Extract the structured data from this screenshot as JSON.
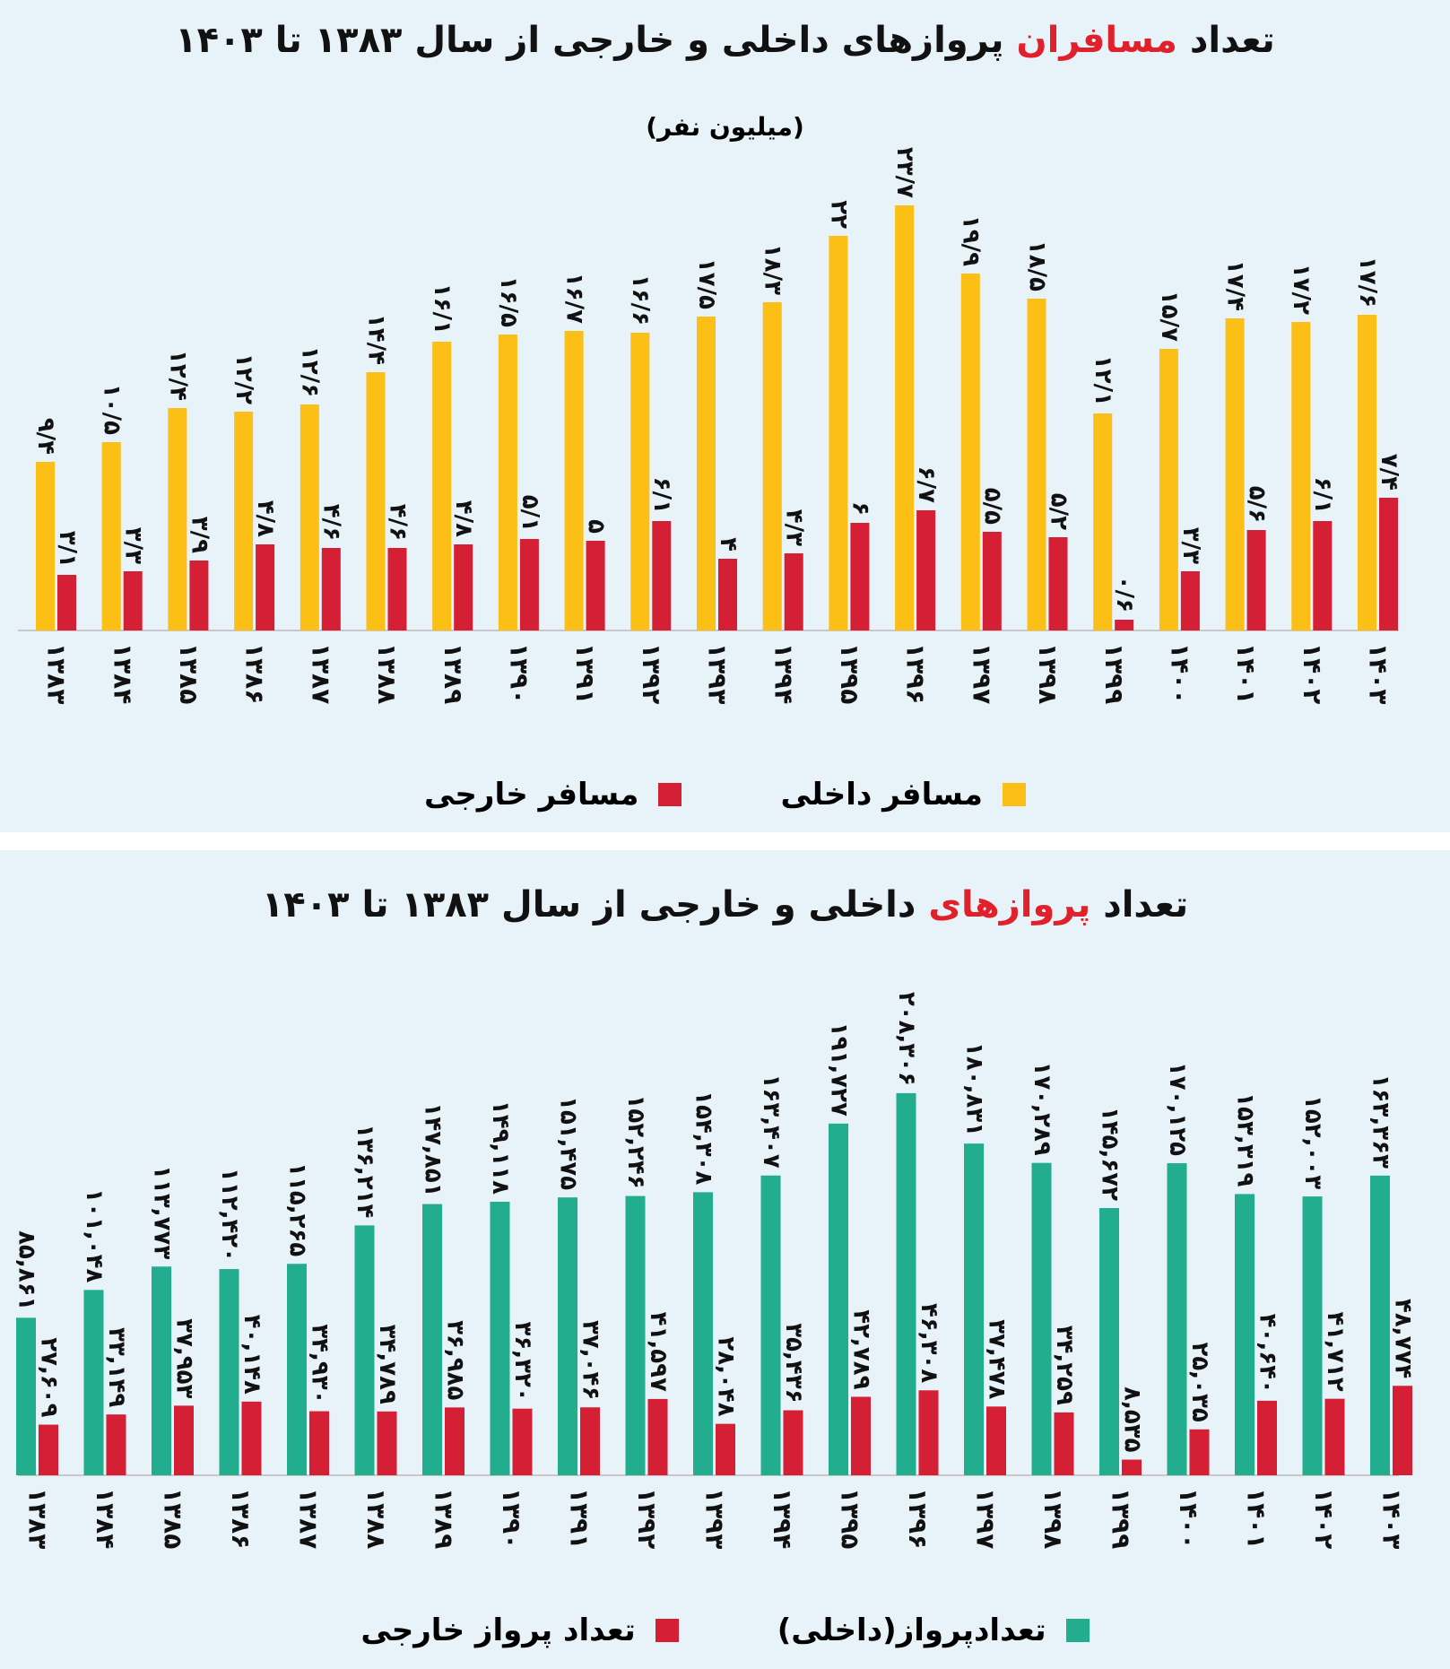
{
  "colors": {
    "domestic_passenger": "#fbbf16",
    "foreign": "#d51f35",
    "domestic_flights": "#22ad8f",
    "highlight": "#e0202a"
  },
  "chart_data": [
    {
      "type": "bar",
      "title_pre": "تعداد",
      "title_hl": "مسافران",
      "title_post": "پروازهای داخلی و خارجی از سال ۱۳۸۳ تا ۱۴۰۳",
      "subtitle": "(میلیون نفر)",
      "categories": [
        "۱۳۸۳",
        "۱۳۸۴",
        "۱۳۸۵",
        "۱۳۸۶",
        "۱۳۸۷",
        "۱۳۸۸",
        "۱۳۸۹",
        "۱۳۹۰",
        "۱۳۹۱",
        "۱۳۹۲",
        "۱۳۹۳",
        "۱۳۹۴",
        "۱۳۹۵",
        "۱۳۹۶",
        "۱۳۹۷",
        "۱۳۹۸",
        "۱۳۹۹",
        "۱۴۰۰",
        "۱۴۰۱",
        "۱۴۰۲",
        "۱۴۰۳"
      ],
      "series": [
        {
          "name": "مسافر داخلی",
          "values": [
            9.4,
            10.5,
            12.4,
            12.2,
            12.6,
            14.4,
            16.1,
            16.5,
            16.7,
            16.6,
            17.5,
            18.3,
            22,
            23.7,
            19.9,
            18.5,
            12.1,
            15.7,
            17.4,
            17.2,
            17.6
          ],
          "labels": [
            "۹/۴",
            "۱۰/۵",
            "۱۲/۴",
            "۱۲/۲",
            "۱۲/۶",
            "۱۴/۴",
            "۱۶/۱",
            "۱۶/۵",
            "۱۶/۷",
            "۱۶/۶",
            "۱۷/۵",
            "۱۸/۳",
            "۲۲",
            "۲۳/۷",
            "۱۹/۹",
            "۱۸/۵",
            "۱۲/۱",
            "۱۵/۷",
            "۱۷/۴",
            "۱۷/۲",
            "۱۷/۶"
          ]
        },
        {
          "name": "مسافر خارجی",
          "values": [
            3.1,
            3.3,
            3.9,
            4.8,
            4.6,
            4.6,
            4.8,
            5.1,
            5,
            6.1,
            4,
            4.3,
            6,
            6.7,
            5.5,
            5.2,
            0.6,
            3.3,
            5.6,
            6.1,
            7.4
          ],
          "labels": [
            "۳/۱",
            "۳/۳",
            "۳/۹",
            "۴/۸",
            "۴/۶",
            "۴/۶",
            "۴/۸",
            "۵/۱",
            "۵",
            "۶/۱",
            "۴",
            "۴/۳",
            "۶",
            "۶/۷",
            "۵/۵",
            "۵/۲",
            "۰/۶",
            "۳/۳",
            "۵/۶",
            "۶/۱",
            "۷/۴"
          ]
        }
      ],
      "ylim": [
        0,
        25
      ],
      "legend": "bottom"
    },
    {
      "type": "bar",
      "title_pre": "تعداد",
      "title_hl": "پروازهای",
      "title_post": "داخلی و خارجی از سال ۱۳۸۳ تا ۱۴۰۳",
      "categories": [
        "۱۳۸۳",
        "۱۳۸۴",
        "۱۳۸۵",
        "۱۳۸۶",
        "۱۳۸۷",
        "۱۳۸۸",
        "۱۳۸۹",
        "۱۳۹۰",
        "۱۳۹۱",
        "۱۳۹۲",
        "۱۳۹۳",
        "۱۳۹۴",
        "۱۳۹۵",
        "۱۳۹۶",
        "۱۳۹۷",
        "۱۳۹۸",
        "۱۳۹۹",
        "۱۴۰۰",
        "۱۴۰۱",
        "۱۴۰۲",
        "۱۴۰۳"
      ],
      "series": [
        {
          "name": "تعدادپرواز(داخلی)",
          "values": [
            85861,
            101048,
            113773,
            112420,
            115265,
            136214,
            147851,
            149118,
            151475,
            152246,
            154308,
            163407,
            191727,
            208306,
            180831,
            170289,
            145672,
            170125,
            153319,
            152003,
            163363
          ],
          "labels": [
            "۸۵,۸۶۱",
            "۱۰۱,۰۴۸",
            "۱۱۳,۷۷۳",
            "۱۱۲,۴۲۰",
            "۱۱۵,۲۶۵",
            "۱۳۶,۲۱۴",
            "۱۴۷,۸۵۱",
            "۱۴۹,۱۱۸",
            "۱۵۱,۴۷۵",
            "۱۵۲,۲۴۶",
            "۱۵۴,۳۰۸",
            "۱۶۳,۴۰۷",
            "۱۹۱,۷۲۷",
            "۲۰۸,۳۰۶",
            "۱۸۰,۸۳۱",
            "۱۷۰,۲۸۹",
            "۱۴۵,۶۷۲",
            "۱۷۰,۱۲۵",
            "۱۵۳,۳۱۹",
            "۱۵۲,۰۰۳",
            "۱۶۳,۳۶۳"
          ]
        },
        {
          "name": "تعداد پرواز خارجی",
          "values": [
            27609,
            33149,
            37953,
            40148,
            34930,
            34789,
            36985,
            36320,
            37046,
            41597,
            28048,
            35436,
            42789,
            46308,
            37478,
            34259,
            8535,
            25035,
            40640,
            41712,
            48774
          ],
          "labels": [
            "۲۷,۶۰۹",
            "۳۳,۱۴۹",
            "۳۷,۹۵۳",
            "۴۰,۱۴۸",
            "۳۴,۹۳۰",
            "۳۴,۷۸۹",
            "۳۶,۹۸۵",
            "۳۶,۳۲۰",
            "۳۷,۰۴۶",
            "۴۱,۵۹۷",
            "۲۸,۰۴۸",
            "۳۵,۴۳۶",
            "۴۲,۷۸۹",
            "۴۶,۳۰۸",
            "۳۷,۴۷۸",
            "۳۴,۲۵۹",
            "۸,۵۳۵",
            "۲۵,۰۳۵",
            "۴۰,۶۴۰",
            "۴۱,۷۱۲",
            "۴۸,۷۷۴"
          ]
        }
      ],
      "ylim": [
        0,
        220000
      ],
      "legend": "bottom"
    }
  ]
}
